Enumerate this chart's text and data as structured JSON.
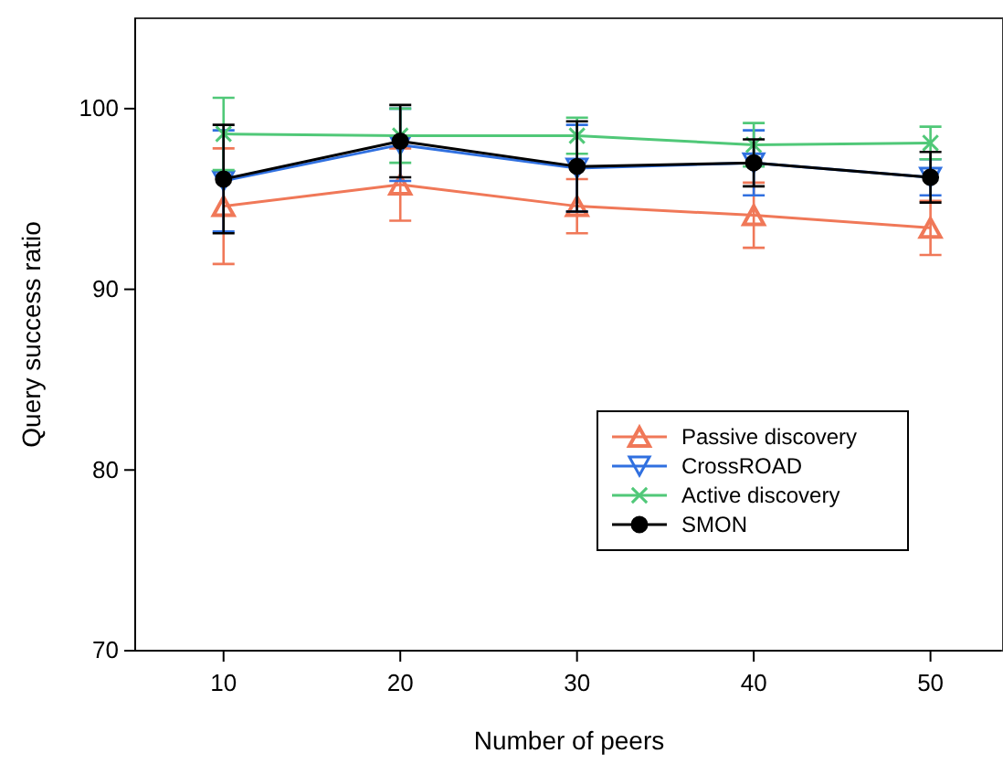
{
  "chart_data": {
    "type": "line",
    "xlabel": "Number of peers",
    "ylabel": "Query success ratio",
    "x": [
      10,
      20,
      30,
      40,
      50
    ],
    "xlim": [
      5,
      54
    ],
    "xticks": [
      10,
      20,
      30,
      40,
      50
    ],
    "ylim": [
      70,
      105
    ],
    "yticks": [
      70,
      80,
      90,
      100
    ],
    "grid": false,
    "legend": "right",
    "series": [
      {
        "name": "Passive discovery",
        "color": "#f07858",
        "marker": "triangle",
        "values": [
          94.6,
          95.8,
          94.6,
          94.1,
          93.4
        ],
        "errors": [
          3.2,
          2,
          1.5,
          1.8,
          1.5
        ]
      },
      {
        "name": "CrossROAD",
        "color": "#3070e0",
        "marker": "triangle-down",
        "values": [
          96.0,
          98.0,
          96.7,
          97.0,
          96.2
        ],
        "errors": [
          2.8,
          2,
          2.4,
          1.8,
          1.0
        ]
      },
      {
        "name": "Active discovery",
        "color": "#50c878",
        "marker": "cross",
        "values": [
          98.6,
          98.5,
          98.5,
          98.0,
          98.1
        ],
        "errors": [
          2,
          1.5,
          1,
          1.2,
          0.9
        ]
      },
      {
        "name": "SMON",
        "color": "#000000",
        "marker": "circle",
        "values": [
          96.1,
          98.2,
          96.8,
          97.0,
          96.2
        ],
        "errors": [
          3,
          2,
          2.5,
          1.3,
          1.4
        ]
      }
    ]
  }
}
